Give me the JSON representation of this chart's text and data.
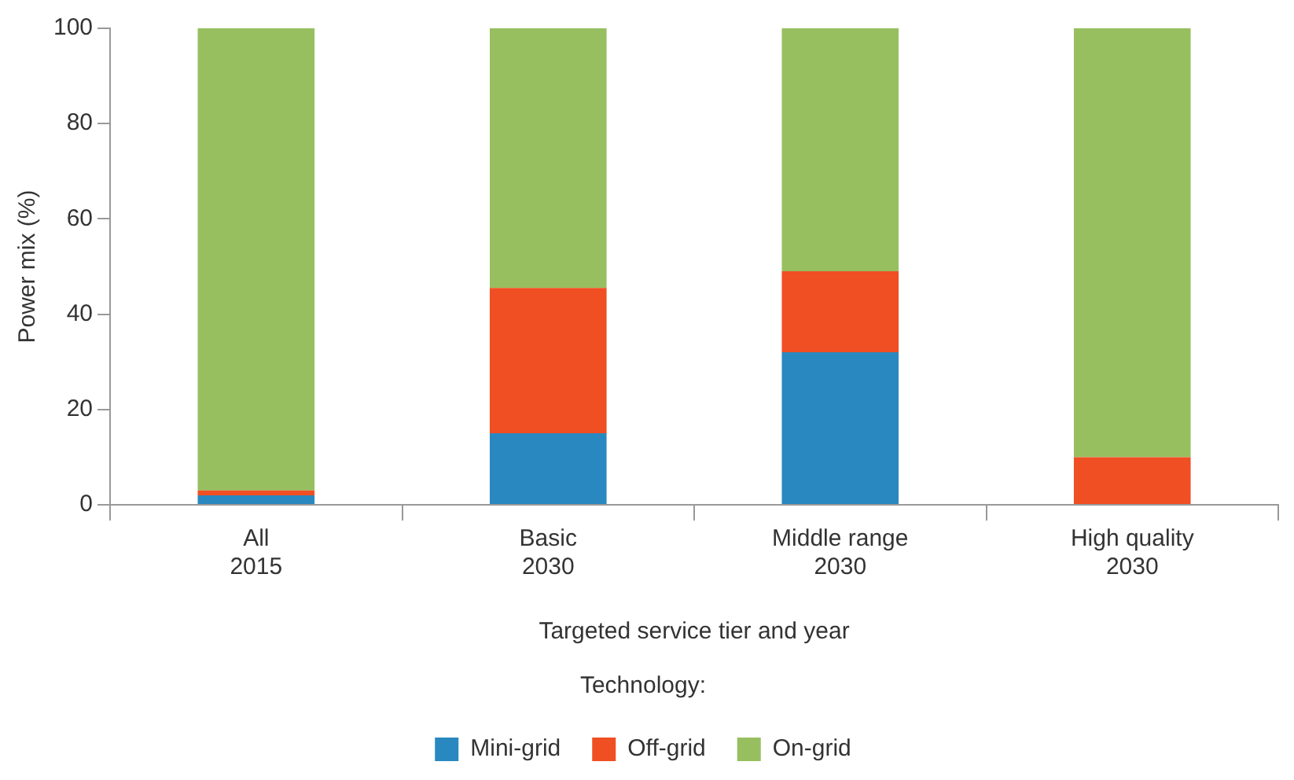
{
  "chart_data": {
    "type": "bar",
    "stacked": true,
    "xlabel": "Targeted service tier and year",
    "ylabel": "Power mix (%)",
    "legend_title": "Technology:",
    "legend": "bottom",
    "grid": false,
    "categories": [
      "All\n2015",
      "Basic\n2030",
      "Middle range\n2030",
      "High quality\n2030"
    ],
    "series": [
      {
        "name": "Mini-grid",
        "color": "#2a88c0",
        "values": [
          2,
          15,
          32,
          0
        ]
      },
      {
        "name": "Off-grid",
        "color": "#f04e23",
        "values": [
          1,
          30.5,
          17,
          10
        ]
      },
      {
        "name": "On-grid",
        "color": "#97bf5f",
        "values": [
          97,
          54.5,
          51,
          90
        ]
      }
    ],
    "ylim": [
      0,
      100
    ],
    "yticks": [
      0,
      20,
      40,
      60,
      80,
      100
    ]
  }
}
